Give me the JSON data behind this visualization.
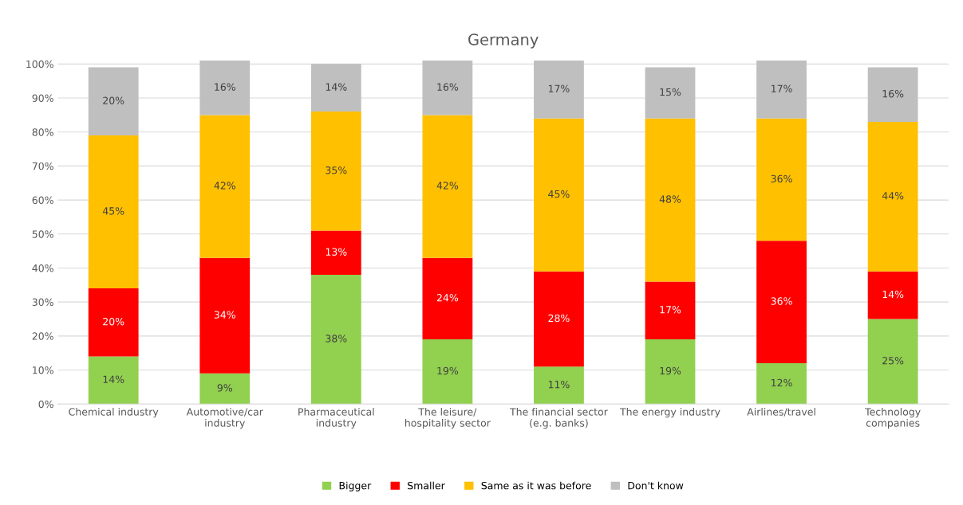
{
  "chart_data": {
    "type": "bar",
    "title": "Germany",
    "stacked": true,
    "categories": [
      "Chemical industry",
      "Automotive/car\nindustry",
      "Pharmaceutical\nindustry",
      "The leisure/\nhospitality sector",
      "The financial sector\n(e.g. banks)",
      "The energy industry",
      "Airlines/travel",
      "Technology\ncompanies"
    ],
    "series": [
      {
        "name": "Bigger",
        "color": "#92d050",
        "values": [
          14,
          9,
          38,
          19,
          11,
          19,
          12,
          25
        ],
        "value_labels": [
          "14%",
          "9%",
          "38%",
          "19%",
          "11%",
          "19%",
          "12%",
          "25%"
        ]
      },
      {
        "name": "Smaller",
        "color": "#ff0000",
        "values": [
          20,
          34,
          13,
          24,
          28,
          17,
          36,
          14
        ],
        "value_labels": [
          "20%",
          "34%",
          "13%",
          "24%",
          "28%",
          "17%",
          "36%",
          "14%"
        ]
      },
      {
        "name": "Same as it was before",
        "color": "#ffc000",
        "values": [
          45,
          42,
          35,
          42,
          45,
          48,
          36,
          44
        ],
        "value_labels": [
          "45%",
          "42%",
          "35%",
          "42%",
          "45%",
          "48%",
          "36%",
          "44%"
        ]
      },
      {
        "name": "Don't know",
        "color": "#bfbfbf",
        "values": [
          20,
          16,
          14,
          16,
          17,
          15,
          17,
          16
        ],
        "value_labels": [
          "20%",
          "16%",
          "14%",
          "16%",
          "17%",
          "15%",
          "17%",
          "16%"
        ]
      }
    ],
    "ylim": [
      0,
      101
    ],
    "yticks": [
      {
        "value": 0,
        "label": "0%"
      },
      {
        "value": 10,
        "label": "10%"
      },
      {
        "value": 20,
        "label": "20%"
      },
      {
        "value": 30,
        "label": "30%"
      },
      {
        "value": 40,
        "label": "40%"
      },
      {
        "value": 50,
        "label": "50%"
      },
      {
        "value": 60,
        "label": "60%"
      },
      {
        "value": 70,
        "label": "70%"
      },
      {
        "value": 80,
        "label": "80%"
      },
      {
        "value": 90,
        "label": "90%"
      },
      {
        "value": 100,
        "label": "100%"
      }
    ],
    "grid": "y",
    "legend": "bottom"
  }
}
